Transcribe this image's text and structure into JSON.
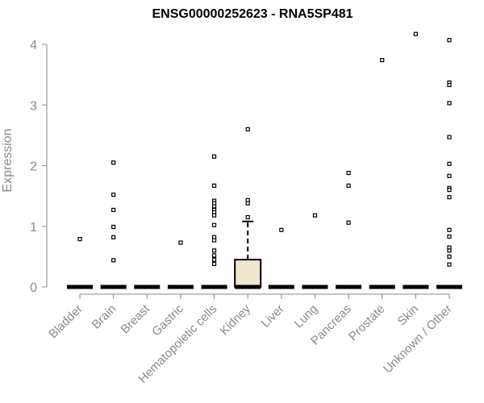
{
  "chart_data": {
    "type": "box",
    "title": "ENSG00000252623 - RNA5SP481",
    "xlabel": "",
    "ylabel": "Expression",
    "ylim": [
      0,
      4.2
    ],
    "yticks": [
      0,
      1,
      2,
      3,
      4
    ],
    "grid": false,
    "categories": [
      "Bladder",
      "Brain",
      "Breast",
      "Gastric",
      "Hematopoietic cells",
      "Kidney",
      "Liver",
      "Lung",
      "Pancreas",
      "Prostate",
      "Skin",
      "Unknown / Other"
    ],
    "boxes": [
      {
        "category": "Bladder",
        "q1": 0,
        "median": 0,
        "q3": 0,
        "whisker_low": 0,
        "whisker_high": 0,
        "outliers": [
          0.79
        ]
      },
      {
        "category": "Brain",
        "q1": 0,
        "median": 0,
        "q3": 0,
        "whisker_low": 0,
        "whisker_high": 0,
        "outliers": [
          2.05,
          1.52,
          1.27,
          0.99,
          0.82,
          0.44
        ]
      },
      {
        "category": "Breast",
        "q1": 0,
        "median": 0,
        "q3": 0,
        "whisker_low": 0,
        "whisker_high": 0,
        "outliers": []
      },
      {
        "category": "Gastric",
        "q1": 0,
        "median": 0,
        "q3": 0,
        "whisker_low": 0,
        "whisker_high": 0,
        "outliers": [
          0.73
        ]
      },
      {
        "category": "Hematopoietic cells",
        "q1": 0,
        "median": 0,
        "q3": 0,
        "whisker_low": 0,
        "whisker_high": 0,
        "outliers": [
          2.15,
          1.67,
          1.42,
          1.38,
          1.33,
          1.27,
          1.23,
          1.18,
          1.02,
          0.82,
          0.77,
          0.6,
          0.52,
          0.45,
          0.38
        ]
      },
      {
        "category": "Kidney",
        "q1": 0,
        "median": 0,
        "q3": 0.45,
        "whisker_low": 0,
        "whisker_high": 1.08,
        "outliers": [
          2.6,
          1.43,
          1.38,
          1.15
        ]
      },
      {
        "category": "Liver",
        "q1": 0,
        "median": 0,
        "q3": 0,
        "whisker_low": 0,
        "whisker_high": 0,
        "outliers": [
          0.94
        ]
      },
      {
        "category": "Lung",
        "q1": 0,
        "median": 0,
        "q3": 0,
        "whisker_low": 0,
        "whisker_high": 0,
        "outliers": [
          1.18
        ]
      },
      {
        "category": "Pancreas",
        "q1": 0,
        "median": 0,
        "q3": 0,
        "whisker_low": 0,
        "whisker_high": 0,
        "outliers": [
          1.88,
          1.67,
          1.06
        ]
      },
      {
        "category": "Prostate",
        "q1": 0,
        "median": 0,
        "q3": 0,
        "whisker_low": 0,
        "whisker_high": 0,
        "outliers": [
          3.74
        ]
      },
      {
        "category": "Skin",
        "q1": 0,
        "median": 0,
        "q3": 0,
        "whisker_low": 0,
        "whisker_high": 0,
        "outliers": [
          4.17
        ]
      },
      {
        "category": "Unknown / Other",
        "q1": 0,
        "median": 0,
        "q3": 0,
        "whisker_low": 0,
        "whisker_high": 0,
        "outliers": [
          4.07,
          3.37,
          3.33,
          3.03,
          2.47,
          2.03,
          1.83,
          1.63,
          1.6,
          1.48,
          0.94,
          0.83,
          0.65,
          0.6,
          0.5,
          0.37
        ]
      }
    ],
    "colors": {
      "box_fill": "#efe8cf",
      "box_stroke": "#000000",
      "axis": "#8a8a8a",
      "title": "#000000"
    }
  }
}
